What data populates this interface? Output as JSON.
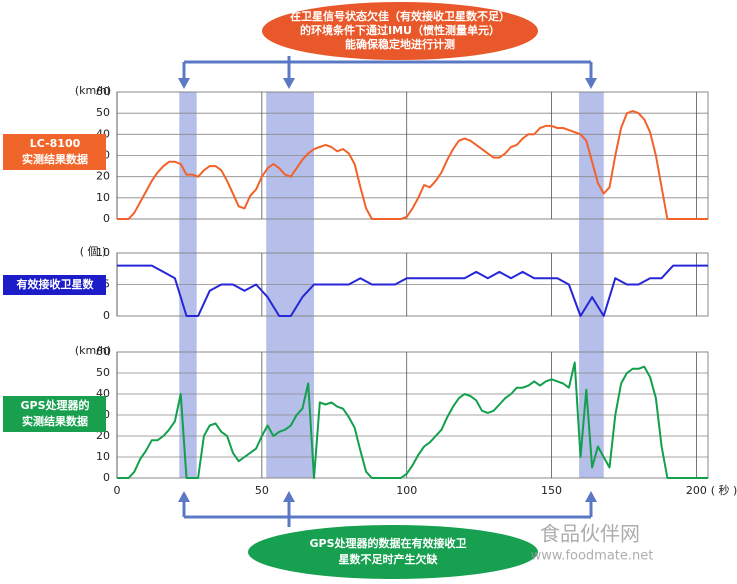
{
  "chart_data": [
    {
      "type": "line",
      "y_label": "(km/h)",
      "side_label": [
        "LC-8100",
        "实测结果数据"
      ],
      "side_color": "#f0652a",
      "xlim": [
        0,
        204
      ],
      "xticks": [
        0,
        50,
        100,
        150,
        200
      ],
      "ylim": [
        0,
        60
      ],
      "yticks": [
        0,
        10,
        20,
        30,
        40,
        50,
        60
      ],
      "grid": true,
      "x": [
        0,
        2,
        4,
        6,
        8,
        10,
        12,
        14,
        16,
        18,
        20,
        22,
        24,
        26,
        28,
        30,
        32,
        34,
        36,
        38,
        40,
        42,
        44,
        46,
        48,
        50,
        52,
        54,
        56,
        58,
        60,
        62,
        64,
        66,
        68,
        70,
        72,
        74,
        76,
        78,
        80,
        82,
        84,
        86,
        88,
        90,
        92,
        94,
        96,
        98,
        100,
        102,
        104,
        106,
        108,
        110,
        112,
        114,
        116,
        118,
        120,
        122,
        124,
        126,
        128,
        130,
        132,
        134,
        136,
        138,
        140,
        142,
        144,
        146,
        148,
        150,
        152,
        154,
        156,
        158,
        160,
        162,
        164,
        166,
        168,
        170,
        172,
        174,
        176,
        178,
        180,
        182,
        184,
        186,
        188,
        190,
        192,
        194,
        196,
        198,
        200,
        202,
        204
      ],
      "series": [
        {
          "color": "#f2622a",
          "values": [
            0,
            0,
            0,
            3,
            8,
            13,
            18,
            22,
            25,
            27,
            27,
            26,
            21,
            21,
            20,
            23,
            25,
            25,
            23,
            18,
            12,
            6,
            5,
            11,
            14,
            20,
            24,
            26,
            24,
            21,
            20,
            24,
            28,
            31,
            33,
            34,
            35,
            34,
            32,
            33,
            31,
            26,
            15,
            5,
            0,
            0,
            0,
            0,
            0,
            0,
            1,
            5,
            10,
            16,
            15,
            18,
            22,
            28,
            33,
            37,
            38,
            37,
            35,
            33,
            31,
            29,
            29,
            31,
            34,
            35,
            38,
            40,
            40,
            43,
            44,
            44,
            43,
            43,
            42,
            41,
            40,
            37,
            27,
            17,
            12,
            15,
            30,
            43,
            50,
            51,
            50,
            47,
            41,
            30,
            15,
            0,
            0,
            0,
            0,
            0,
            0,
            0,
            0
          ]
        }
      ]
    },
    {
      "type": "line",
      "y_label": "( 個 )",
      "side_label": [
        "有效接收卫星数"
      ],
      "side_color": "#1c1cc8",
      "xlim": [
        0,
        204
      ],
      "xticks": [
        0,
        50,
        100,
        150,
        200
      ],
      "ylim": [
        0,
        10
      ],
      "yticks": [
        0,
        5,
        10
      ],
      "grid": true,
      "x": [
        0,
        4,
        8,
        12,
        16,
        20,
        24,
        28,
        32,
        36,
        40,
        44,
        48,
        52,
        56,
        60,
        64,
        68,
        72,
        76,
        80,
        84,
        88,
        92,
        96,
        100,
        104,
        108,
        112,
        116,
        120,
        124,
        128,
        132,
        136,
        140,
        144,
        148,
        152,
        156,
        160,
        164,
        168,
        172,
        176,
        180,
        184,
        188,
        192,
        196,
        200,
        204
      ],
      "series": [
        {
          "color": "#2626d8",
          "values": [
            8,
            8,
            8,
            8,
            7,
            6,
            0,
            0,
            4,
            5,
            5,
            4,
            5,
            3,
            0,
            0,
            3,
            5,
            5,
            5,
            5,
            6,
            5,
            5,
            5,
            6,
            6,
            6,
            6,
            6,
            6,
            7,
            6,
            7,
            6,
            7,
            6,
            6,
            6,
            5,
            0,
            3,
            0,
            6,
            5,
            5,
            6,
            6,
            8,
            8,
            8,
            8
          ]
        }
      ]
    },
    {
      "type": "line",
      "y_label": "(km/h)",
      "side_label": [
        "GPS处理器的",
        "实测结果数据"
      ],
      "side_color": "#18a04e",
      "xlim": [
        0,
        204
      ],
      "xticks": [
        0,
        50,
        100,
        150,
        200
      ],
      "xtick_labels": true,
      "x_label": "( 秒 )",
      "ylim": [
        0,
        60
      ],
      "yticks": [
        0,
        10,
        20,
        30,
        40,
        50,
        60
      ],
      "grid": true,
      "x": [
        0,
        2,
        4,
        6,
        8,
        10,
        12,
        14,
        16,
        18,
        20,
        22,
        24,
        26,
        28,
        30,
        32,
        34,
        36,
        38,
        40,
        42,
        44,
        46,
        48,
        50,
        52,
        54,
        56,
        58,
        60,
        62,
        64,
        66,
        68,
        70,
        72,
        74,
        76,
        78,
        80,
        82,
        84,
        86,
        88,
        90,
        92,
        94,
        96,
        98,
        100,
        102,
        104,
        106,
        108,
        110,
        112,
        114,
        116,
        118,
        120,
        122,
        124,
        126,
        128,
        130,
        132,
        134,
        136,
        138,
        140,
        142,
        144,
        146,
        148,
        150,
        152,
        154,
        156,
        158,
        160,
        162,
        164,
        166,
        168,
        170,
        172,
        174,
        176,
        178,
        180,
        182,
        184,
        186,
        188,
        190,
        192,
        194,
        196,
        198,
        200,
        202,
        204
      ],
      "series": [
        {
          "color": "#12a04c",
          "values": [
            0,
            0,
            0,
            3,
            9,
            13,
            18,
            18,
            20,
            23,
            27,
            40,
            0,
            0,
            0,
            20,
            25,
            26,
            22,
            20,
            12,
            8,
            10,
            12,
            14,
            20,
            25,
            20,
            22,
            23,
            25,
            30,
            33,
            45,
            0,
            36,
            35,
            36,
            34,
            33,
            29,
            24,
            13,
            3,
            0,
            0,
            0,
            0,
            0,
            0,
            2,
            6,
            11,
            15,
            17,
            20,
            23,
            29,
            34,
            38,
            40,
            39,
            37,
            32,
            31,
            32,
            35,
            38,
            40,
            43,
            43,
            44,
            46,
            44,
            46,
            47,
            46,
            45,
            43,
            55,
            10,
            42,
            5,
            15,
            10,
            5,
            30,
            45,
            50,
            52,
            52,
            53,
            48,
            38,
            15,
            0,
            0,
            0,
            0,
            0,
            0,
            0,
            0
          ]
        }
      ]
    }
  ],
  "highlights": {
    "color": "#a9b3e6",
    "ranges": [
      [
        21.5,
        27.5
      ],
      [
        51.5,
        68
      ],
      [
        159.5,
        168
      ]
    ]
  },
  "top_note": [
    "在卫星信号状态欠佳（有效接收卫星数不足）",
    "的环境条件下通过IMU（惯性测量单元）",
    "能确保稳定地进行计测"
  ],
  "bottom_note": [
    "GPS处理器的数据在有效接收卫",
    "星数不足时产生欠缺"
  ],
  "watermark": [
    "食品伙伴网",
    "www.foodmate.net"
  ]
}
